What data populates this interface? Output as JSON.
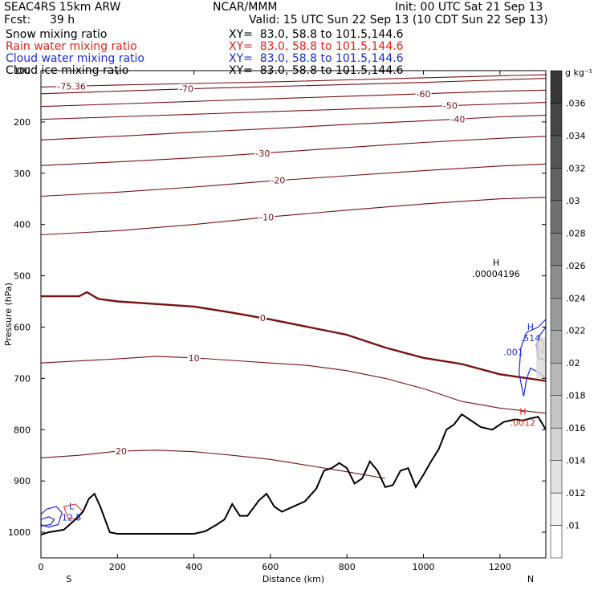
{
  "header": {
    "model": "SEAC4RS 15km ARW",
    "center": "NCAR/MMM",
    "init": "Init: 00 UTC Sat 21 Sep 13",
    "fcst_label": "Fcst:",
    "fcst_value": "39 h",
    "valid": "Valid: 15 UTC Sun 22 Sep 13 (10 CDT Sun 22 Sep 13)"
  },
  "fields": [
    {
      "name": "Snow mixing ratio",
      "xy": "XY=  83.0, 58.8 to 101.5,144.6",
      "color": "#000000"
    },
    {
      "name": "Rain water mixing ratio",
      "xy": "XY=  83.0, 58.8 to 101.5,144.6",
      "color": "#e8201a"
    },
    {
      "name": "Cloud water mixing ratio",
      "xy": "XY=  83.0, 58.8 to 101.5,144.6",
      "color": "#1a2ad8"
    },
    {
      "name": "Cloud ice mixing ratio",
      "xy": "XY=  83.0, 58.8 to 101.5,144.6",
      "color": "#000000"
    }
  ],
  "colors": {
    "temperature": "#7a1010",
    "cloud_water": "#1a2ad8",
    "rain": "#e8201a",
    "terrain": "#000000"
  },
  "chart_data": {
    "type": "cross-section",
    "xlabel": "Distance (km)",
    "ylabel": "Pressure (hPa)",
    "xlim": [
      0,
      1320
    ],
    "ylim": [
      1050,
      100
    ],
    "x_ticks": [
      0,
      200,
      400,
      600,
      800,
      1000,
      1200
    ],
    "y_ticks": [
      100,
      200,
      300,
      400,
      500,
      600,
      700,
      800,
      900,
      1000
    ],
    "end_labels": [
      "S",
      "N"
    ],
    "colorbar": {
      "unit": "g kg⁻¹",
      "ticks": [
        ".01",
        ".012",
        ".014",
        ".016",
        ".018",
        ".02",
        ".022",
        ".024",
        ".026",
        ".028",
        ".03",
        ".032",
        ".034",
        ".036"
      ]
    },
    "terrain": [
      [
        0,
        1005
      ],
      [
        20,
        1000
      ],
      [
        60,
        995
      ],
      [
        90,
        975
      ],
      [
        110,
        960
      ],
      [
        125,
        935
      ],
      [
        140,
        925
      ],
      [
        155,
        950
      ],
      [
        180,
        1000
      ],
      [
        200,
        1003
      ],
      [
        250,
        1003
      ],
      [
        300,
        1003
      ],
      [
        350,
        1003
      ],
      [
        400,
        1003
      ],
      [
        430,
        998
      ],
      [
        460,
        985
      ],
      [
        480,
        975
      ],
      [
        500,
        945
      ],
      [
        520,
        968
      ],
      [
        540,
        968
      ],
      [
        570,
        938
      ],
      [
        590,
        925
      ],
      [
        610,
        950
      ],
      [
        630,
        960
      ],
      [
        660,
        950
      ],
      [
        690,
        940
      ],
      [
        720,
        915
      ],
      [
        740,
        880
      ],
      [
        760,
        875
      ],
      [
        780,
        865
      ],
      [
        800,
        875
      ],
      [
        820,
        905
      ],
      [
        840,
        895
      ],
      [
        860,
        862
      ],
      [
        880,
        880
      ],
      [
        900,
        912
      ],
      [
        920,
        908
      ],
      [
        940,
        880
      ],
      [
        960,
        875
      ],
      [
        980,
        912
      ],
      [
        1000,
        888
      ],
      [
        1020,
        862
      ],
      [
        1040,
        838
      ],
      [
        1060,
        800
      ],
      [
        1080,
        790
      ],
      [
        1100,
        770
      ],
      [
        1120,
        780
      ],
      [
        1150,
        795
      ],
      [
        1180,
        800
      ],
      [
        1210,
        785
      ],
      [
        1240,
        780
      ],
      [
        1260,
        782
      ],
      [
        1280,
        778
      ],
      [
        1300,
        775
      ],
      [
        1320,
        800
      ]
    ],
    "isotherms": [
      {
        "label": "-75.36",
        "points": [
          [
            0,
            132
          ],
          [
            200,
            128
          ],
          [
            400,
            125
          ],
          [
            600,
            122
          ],
          [
            800,
            118
          ],
          [
            1000,
            114
          ],
          [
            1200,
            110
          ],
          [
            1320,
            108
          ]
        ]
      },
      {
        "label": "-70",
        "points": [
          [
            0,
            145
          ],
          [
            200,
            140
          ],
          [
            400,
            135
          ],
          [
            600,
            131
          ],
          [
            800,
            127
          ],
          [
            1000,
            123
          ],
          [
            1200,
            118
          ],
          [
            1320,
            115
          ]
        ]
      },
      {
        "label": "-60",
        "points": [
          [
            0,
            170
          ],
          [
            200,
            165
          ],
          [
            400,
            160
          ],
          [
            600,
            155
          ],
          [
            800,
            150
          ],
          [
            1000,
            145
          ],
          [
            1200,
            140
          ],
          [
            1320,
            138
          ]
        ]
      },
      {
        "label": "-50",
        "points": [
          [
            0,
            195
          ],
          [
            200,
            190
          ],
          [
            400,
            185
          ],
          [
            600,
            180
          ],
          [
            800,
            175
          ],
          [
            1000,
            170
          ],
          [
            1200,
            165
          ],
          [
            1320,
            162
          ]
        ]
      },
      {
        "label": "-40",
        "points": [
          [
            0,
            235
          ],
          [
            200,
            228
          ],
          [
            400,
            220
          ],
          [
            600,
            213
          ],
          [
            800,
            205
          ],
          [
            1000,
            198
          ],
          [
            1200,
            190
          ],
          [
            1320,
            187
          ]
        ]
      },
      {
        "label": "-30",
        "points": [
          [
            0,
            285
          ],
          [
            200,
            278
          ],
          [
            400,
            270
          ],
          [
            600,
            260
          ],
          [
            800,
            250
          ],
          [
            1000,
            240
          ],
          [
            1200,
            232
          ],
          [
            1320,
            228
          ]
        ]
      },
      {
        "label": "-20",
        "points": [
          [
            0,
            345
          ],
          [
            200,
            337
          ],
          [
            400,
            327
          ],
          [
            600,
            315
          ],
          [
            800,
            305
          ],
          [
            1000,
            295
          ],
          [
            1200,
            286
          ],
          [
            1320,
            282
          ]
        ]
      },
      {
        "label": "-10",
        "points": [
          [
            0,
            420
          ],
          [
            200,
            412
          ],
          [
            400,
            400
          ],
          [
            600,
            385
          ],
          [
            800,
            372
          ],
          [
            1000,
            360
          ],
          [
            1200,
            350
          ],
          [
            1320,
            347
          ]
        ]
      },
      {
        "label": "0",
        "points": [
          [
            0,
            540
          ],
          [
            100,
            540
          ],
          [
            120,
            532
          ],
          [
            150,
            545
          ],
          [
            200,
            550
          ],
          [
            300,
            555
          ],
          [
            400,
            560
          ],
          [
            500,
            572
          ],
          [
            600,
            585
          ],
          [
            700,
            600
          ],
          [
            800,
            615
          ],
          [
            900,
            640
          ],
          [
            1000,
            660
          ],
          [
            1100,
            672
          ],
          [
            1200,
            692
          ],
          [
            1320,
            705
          ]
        ]
      },
      {
        "label": "10",
        "points": [
          [
            0,
            670
          ],
          [
            100,
            666
          ],
          [
            200,
            662
          ],
          [
            300,
            657
          ],
          [
            400,
            660
          ],
          [
            500,
            665
          ],
          [
            600,
            670
          ],
          [
            700,
            675
          ],
          [
            800,
            685
          ],
          [
            900,
            700
          ],
          [
            1000,
            720
          ],
          [
            1100,
            745
          ],
          [
            1200,
            758
          ],
          [
            1320,
            768
          ]
        ]
      },
      {
        "label": "20",
        "points": [
          [
            0,
            855
          ],
          [
            100,
            850
          ],
          [
            200,
            842
          ],
          [
            300,
            840
          ],
          [
            400,
            843
          ],
          [
            500,
            850
          ],
          [
            600,
            858
          ],
          [
            700,
            870
          ],
          [
            800,
            882
          ],
          [
            900,
            895
          ]
        ]
      }
    ],
    "extremes": [
      {
        "label": "H",
        "value": ".00004196",
        "x": 1190,
        "p": 490
      },
      {
        "label": "H",
        "value": ".514",
        "x": 1280,
        "p": 615
      },
      {
        "label": "H",
        "value": ".0012",
        "x": 1260,
        "p": 780
      },
      {
        "label": "L",
        "value": "12.5",
        "x": 80,
        "p": 965
      }
    ],
    "contour_labels": [
      ".001"
    ]
  }
}
